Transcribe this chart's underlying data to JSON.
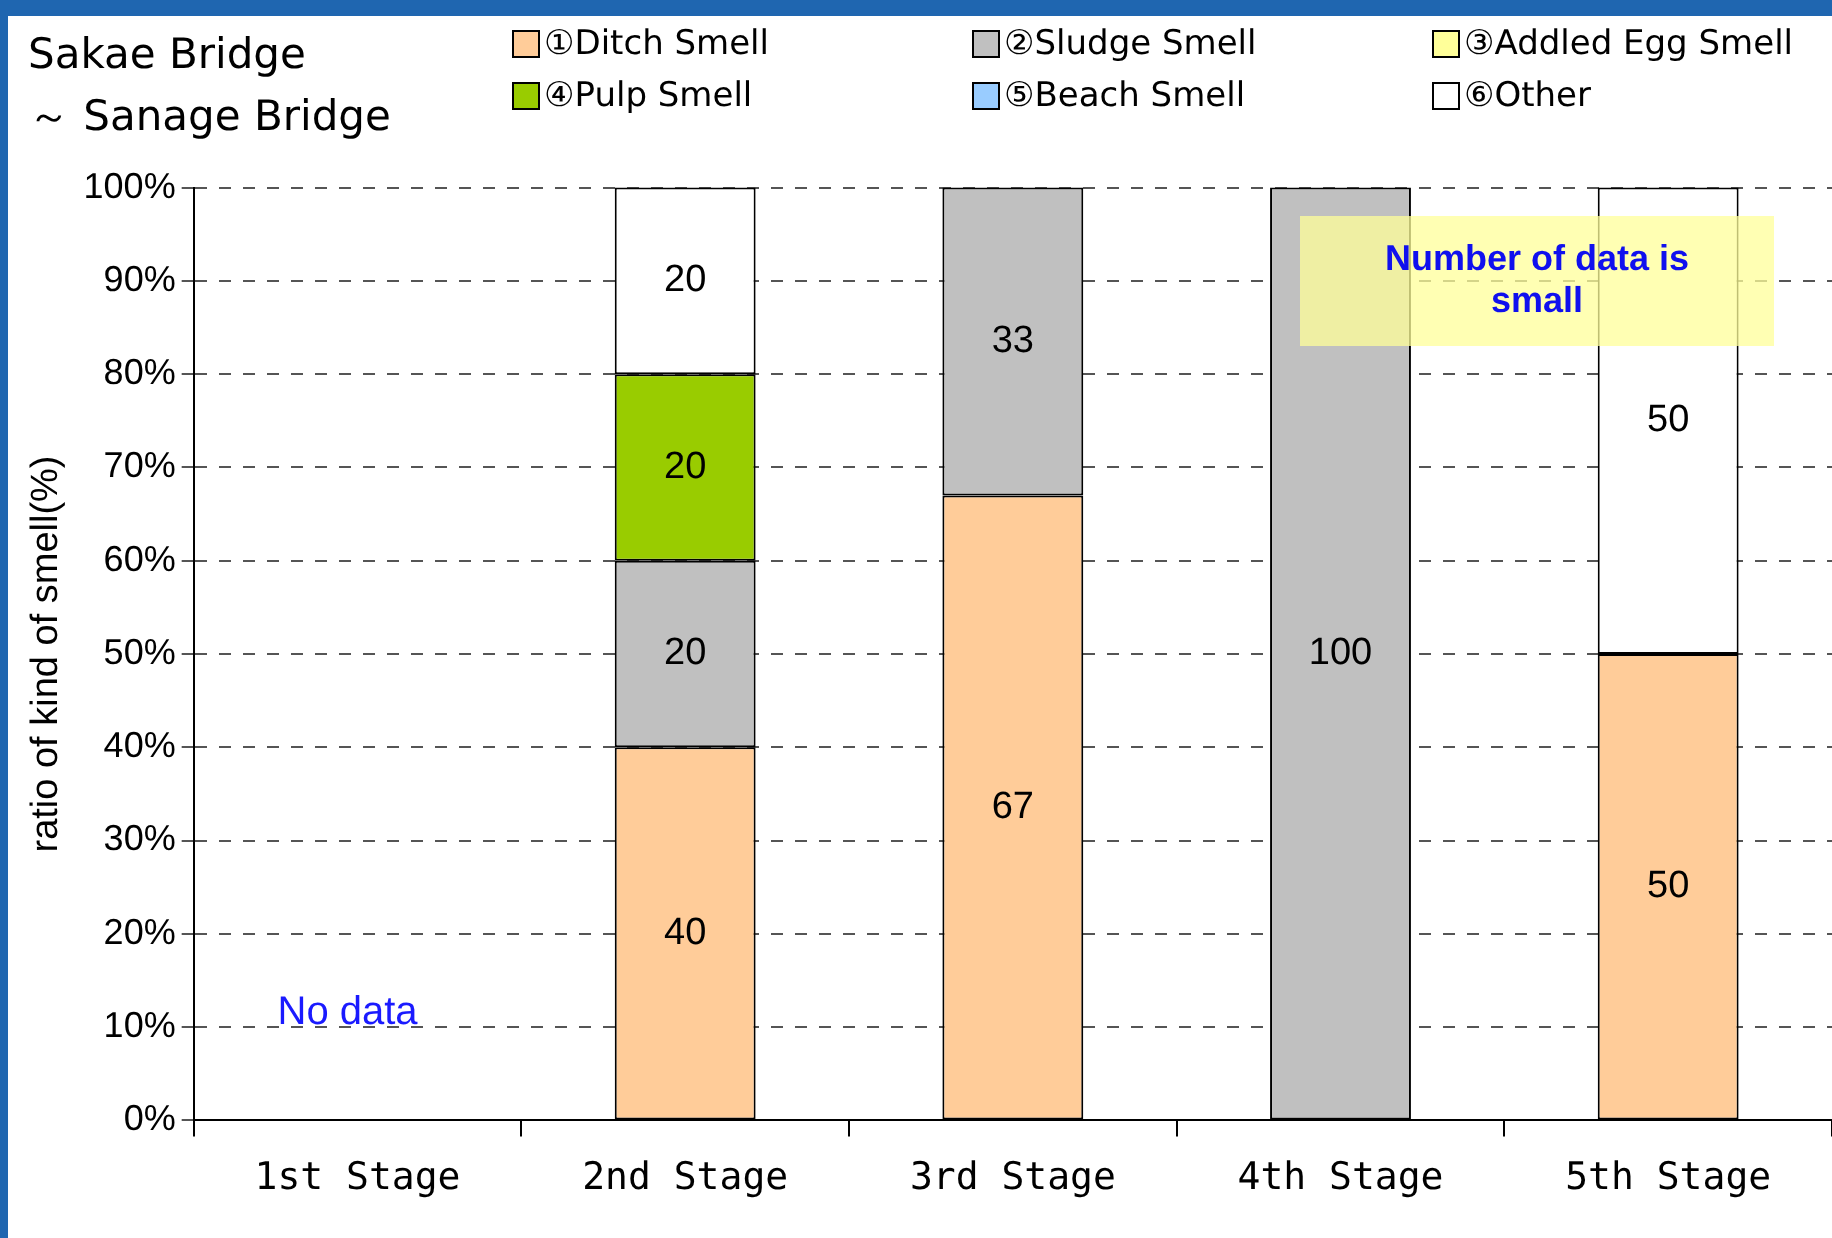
{
  "chart_data": {
    "type": "bar",
    "stacked": true,
    "title": "Sakae Bridge\n～ Sanage Bridge",
    "ylabel": "ratio of kind of smell(%)",
    "categories": [
      "1st Stage",
      "2nd Stage",
      "3rd Stage",
      "4th Stage",
      "5th Stage"
    ],
    "series": [
      {
        "name": "①Ditch Smell",
        "color": "#ffcc99",
        "values": [
          null,
          40,
          67,
          0,
          50
        ],
        "value_labels": [
          null,
          "40",
          "67",
          null,
          "50"
        ]
      },
      {
        "name": "②Sludge Smell",
        "color": "#c0c0c0",
        "values": [
          null,
          20,
          33,
          100,
          0
        ],
        "value_labels": [
          null,
          "20",
          "33",
          "100",
          null
        ]
      },
      {
        "name": "③Addled Egg Smell",
        "color": "#ffff99",
        "values": [
          null,
          0,
          0,
          0,
          0
        ],
        "value_labels": [
          null,
          null,
          null,
          null,
          null
        ]
      },
      {
        "name": "④Pulp Smell",
        "color": "#99cc00",
        "values": [
          null,
          20,
          0,
          0,
          0
        ],
        "value_labels": [
          null,
          "20",
          null,
          null,
          null
        ]
      },
      {
        "name": "⑤Beach Smell",
        "color": "#99ccff",
        "values": [
          null,
          0,
          0,
          0,
          0
        ],
        "value_labels": [
          null,
          null,
          null,
          null,
          null
        ]
      },
      {
        "name": "⑥Other",
        "color": "#ffffff",
        "values": [
          null,
          20,
          0,
          0,
          50
        ],
        "value_labels": [
          null,
          "20",
          null,
          null,
          "50"
        ]
      }
    ],
    "ylim": [
      0,
      100
    ],
    "yticks": [
      {
        "value": 0,
        "label": "0%"
      },
      {
        "value": 10,
        "label": "10%"
      },
      {
        "value": 20,
        "label": "20%"
      },
      {
        "value": 30,
        "label": "30%"
      },
      {
        "value": 40,
        "label": "40%"
      },
      {
        "value": 50,
        "label": "50%"
      },
      {
        "value": 60,
        "label": "60%"
      },
      {
        "value": 70,
        "label": "70%"
      },
      {
        "value": 80,
        "label": "80%"
      },
      {
        "value": 90,
        "label": "90%"
      },
      {
        "value": 100,
        "label": "100%"
      }
    ],
    "grid": "y",
    "legend": "top",
    "annotations": [
      "No data",
      "Number of data is small"
    ]
  }
}
